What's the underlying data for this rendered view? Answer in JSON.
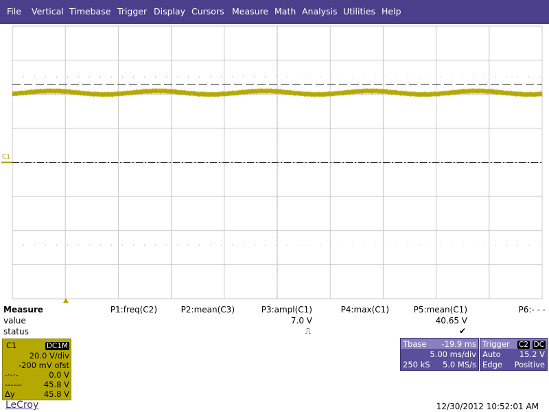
{
  "menu": [
    "File",
    "Vertical",
    "Timebase",
    "Trigger",
    "Display",
    "Cursors",
    "Measure",
    "Math",
    "Analysis",
    "Utilities",
    "Help"
  ],
  "trace_label": "C1",
  "measure": {
    "title": "Measure",
    "row_labels": [
      "value",
      "status"
    ],
    "params": [
      {
        "name": "P1:freq(C2)"
      },
      {
        "name": "P2:mean(C3)"
      },
      {
        "name": "P3:ampl(C1)",
        "value": "7.0 V",
        "status": "⎍"
      },
      {
        "name": "P4:max(C1)"
      },
      {
        "name": "P5:mean(C1)",
        "value": "40.65 V",
        "status": "✔"
      },
      {
        "name": "P6:- - -"
      }
    ]
  },
  "channel": {
    "name": "C1",
    "coupling": "DC1M",
    "vdiv": "20.0 V/div",
    "offset": "-200 mV ofst",
    "lines": [
      {
        "label": "-·-·-",
        "value": "0.0 V"
      },
      {
        "label": "------",
        "value": "45.8 V"
      },
      {
        "label": "Δy",
        "value": "45.8 V"
      }
    ]
  },
  "timebase": {
    "title": "Tbase",
    "delay": "-19.9 ms",
    "tdiv": "5.00 ms/div",
    "samples": "250 kS",
    "rate": "5.0 MS/s"
  },
  "trigger": {
    "title": "Trigger",
    "source": "C2",
    "coupling": "DC",
    "mode": "Auto",
    "level": "15.2 V",
    "type": "Edge",
    "slope": "Positive"
  },
  "footer": {
    "brand": "LeCroy",
    "timestamp": "12/30/2012 10:52:01 AM"
  }
}
